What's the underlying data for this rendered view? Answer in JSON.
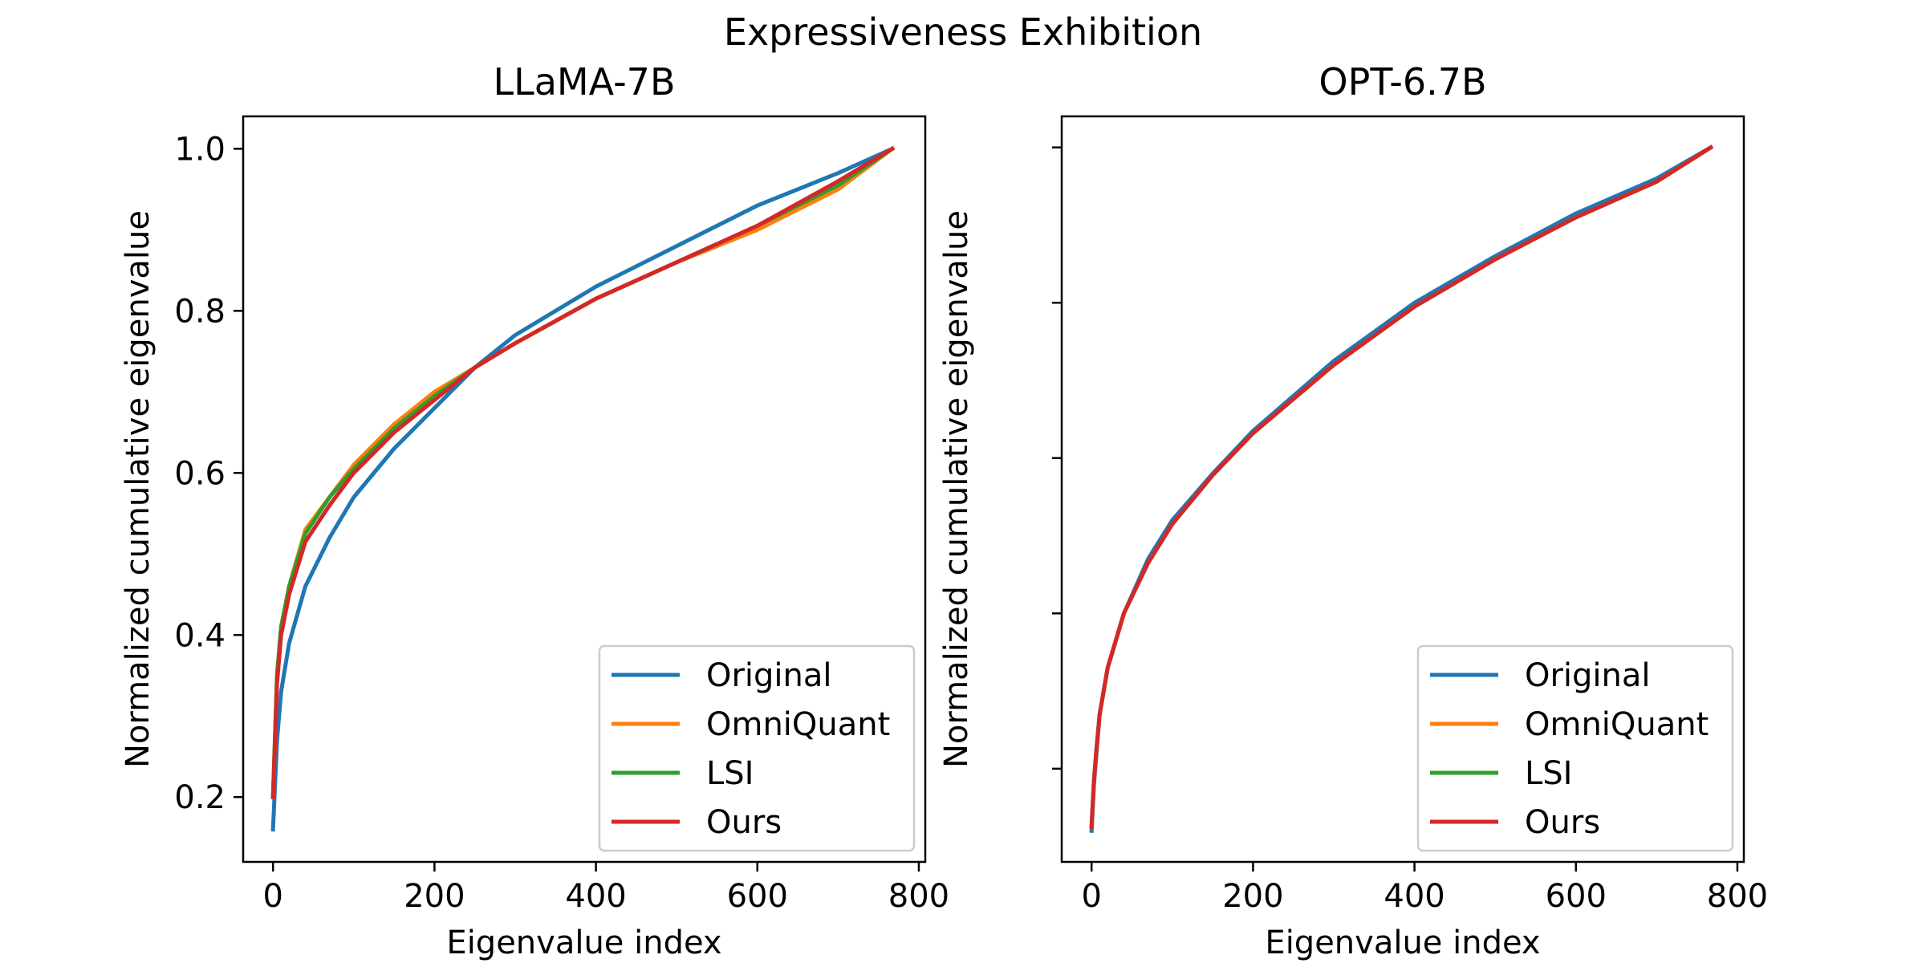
{
  "figure_title": "Expressiveness Exhibition",
  "colors": {
    "Original": "#1f77b4",
    "OmniQuant": "#ff7f0e",
    "LSI": "#2ca02c",
    "Ours": "#d62728"
  },
  "chart_data": [
    {
      "type": "line",
      "title": "LLaMA-7B",
      "xlabel": "Eigenvalue index",
      "ylabel": "Normalized cumulative eigenvalue",
      "xlim": [
        -37,
        808
      ],
      "ylim": [
        0.12,
        1.04
      ],
      "xticks": [
        0,
        200,
        400,
        600,
        800
      ],
      "xtick_labels": [
        "0",
        "200",
        "400",
        "600",
        "800"
      ],
      "yticks": [
        0.2,
        0.4,
        0.6,
        0.8,
        1.0
      ],
      "ytick_labels": [
        "0.2",
        "0.4",
        "0.6",
        "0.8",
        "1.0"
      ],
      "legend_position": "lower right",
      "grid": false,
      "series": [
        {
          "name": "Original",
          "x": [
            0,
            5,
            10,
            20,
            40,
            70,
            100,
            150,
            200,
            250,
            300,
            400,
            500,
            600,
            700,
            767
          ],
          "y": [
            0.16,
            0.27,
            0.33,
            0.39,
            0.46,
            0.52,
            0.57,
            0.63,
            0.68,
            0.73,
            0.77,
            0.83,
            0.88,
            0.93,
            0.97,
            1.0
          ]
        },
        {
          "name": "OmniQuant",
          "x": [
            0,
            5,
            10,
            20,
            40,
            70,
            100,
            150,
            200,
            250,
            300,
            400,
            500,
            600,
            700,
            767
          ],
          "y": [
            0.2,
            0.35,
            0.41,
            0.46,
            0.53,
            0.57,
            0.61,
            0.66,
            0.7,
            0.73,
            0.76,
            0.815,
            0.86,
            0.9,
            0.95,
            1.0
          ]
        },
        {
          "name": "LSI",
          "x": [
            0,
            5,
            10,
            20,
            40,
            70,
            100,
            150,
            200,
            250,
            300,
            400,
            500,
            600,
            700,
            767
          ],
          "y": [
            0.2,
            0.35,
            0.41,
            0.46,
            0.525,
            0.57,
            0.605,
            0.655,
            0.695,
            0.73,
            0.76,
            0.815,
            0.86,
            0.905,
            0.955,
            1.0
          ]
        },
        {
          "name": "Ours",
          "x": [
            0,
            5,
            10,
            20,
            40,
            70,
            100,
            150,
            200,
            250,
            300,
            400,
            500,
            600,
            700,
            767
          ],
          "y": [
            0.2,
            0.34,
            0.4,
            0.45,
            0.515,
            0.56,
            0.6,
            0.65,
            0.69,
            0.73,
            0.76,
            0.815,
            0.86,
            0.905,
            0.96,
            1.0
          ]
        }
      ]
    },
    {
      "type": "line",
      "title": "OPT-6.7B",
      "xlabel": "Eigenvalue index",
      "ylabel": "Normalized cumulative eigenvalue",
      "xlim": [
        -37,
        808
      ],
      "ylim": [
        0.08,
        1.04
      ],
      "xticks": [
        0,
        200,
        400,
        600,
        800
      ],
      "xtick_labels": [
        "0",
        "200",
        "400",
        "600",
        "800"
      ],
      "yticks": [
        0.2,
        0.4,
        0.6,
        0.8,
        1.0
      ],
      "ytick_labels": [],
      "legend_position": "lower right",
      "grid": false,
      "series": [
        {
          "name": "Original",
          "x": [
            0,
            3,
            6,
            10,
            20,
            40,
            70,
            100,
            150,
            200,
            250,
            300,
            400,
            500,
            600,
            700,
            767
          ],
          "y": [
            0.12,
            0.18,
            0.22,
            0.27,
            0.33,
            0.4,
            0.47,
            0.52,
            0.58,
            0.635,
            0.68,
            0.725,
            0.8,
            0.86,
            0.915,
            0.96,
            1.0
          ]
        },
        {
          "name": "OmniQuant",
          "x": [
            0,
            3,
            6,
            10,
            20,
            40,
            70,
            100,
            150,
            200,
            250,
            300,
            400,
            500,
            600,
            700,
            767
          ],
          "y": [
            0.125,
            0.185,
            0.225,
            0.27,
            0.33,
            0.4,
            0.465,
            0.515,
            0.578,
            0.632,
            0.676,
            0.72,
            0.795,
            0.856,
            0.91,
            0.956,
            1.0
          ]
        },
        {
          "name": "LSI",
          "x": [
            0,
            3,
            6,
            10,
            20,
            40,
            70,
            100,
            150,
            200,
            250,
            300,
            400,
            500,
            600,
            700,
            767
          ],
          "y": [
            0.125,
            0.185,
            0.225,
            0.27,
            0.33,
            0.4,
            0.465,
            0.515,
            0.578,
            0.632,
            0.676,
            0.72,
            0.795,
            0.856,
            0.91,
            0.956,
            1.0
          ]
        },
        {
          "name": "Ours",
          "x": [
            0,
            3,
            6,
            10,
            20,
            40,
            70,
            100,
            150,
            200,
            250,
            300,
            400,
            500,
            600,
            700,
            767
          ],
          "y": [
            0.125,
            0.185,
            0.225,
            0.27,
            0.33,
            0.4,
            0.465,
            0.515,
            0.578,
            0.632,
            0.676,
            0.72,
            0.795,
            0.856,
            0.91,
            0.956,
            1.0
          ]
        }
      ]
    }
  ]
}
